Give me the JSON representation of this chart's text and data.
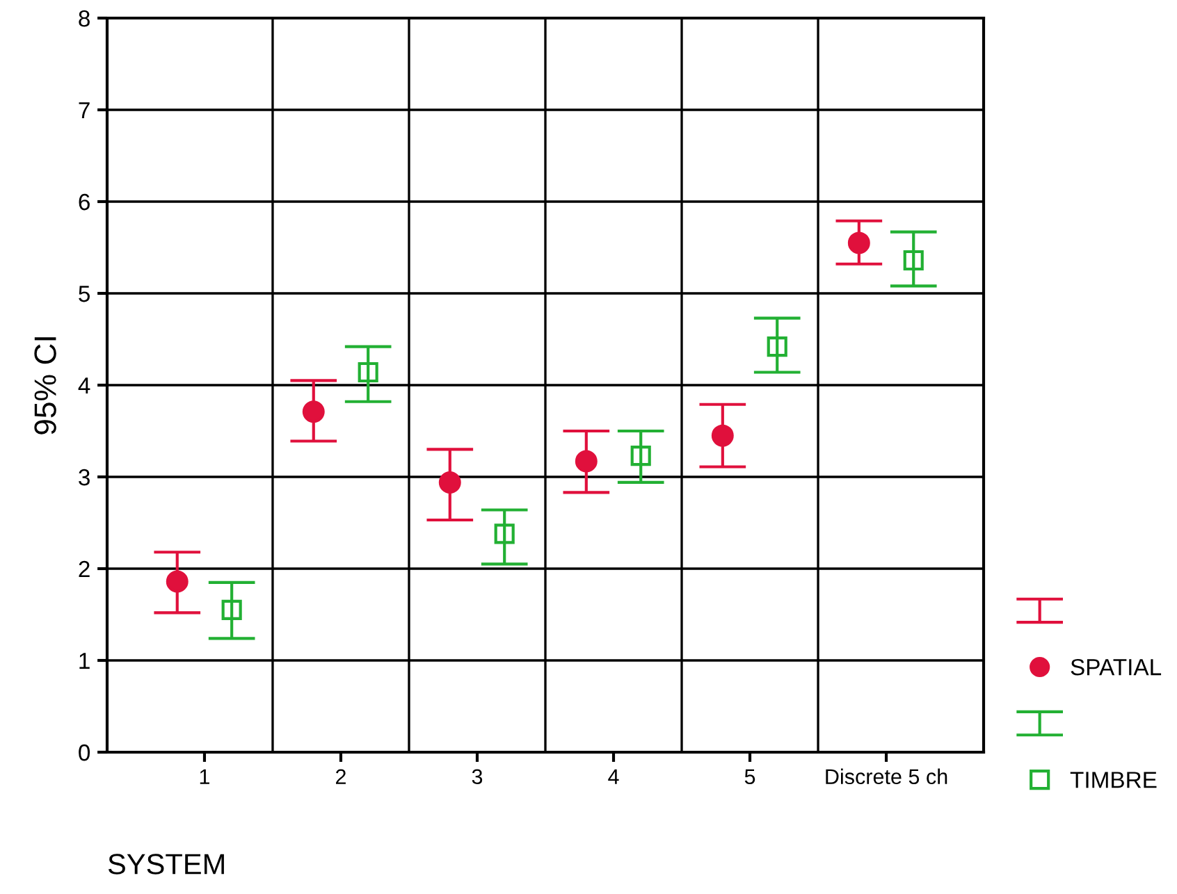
{
  "chart_data": {
    "type": "scatter",
    "xlabel": "SYSTEM",
    "ylabel": "95% CI",
    "categories": [
      "1",
      "2",
      "3",
      "4",
      "5",
      "Discrete 5 ch"
    ],
    "ylim": [
      0,
      8
    ],
    "yticks": [
      0,
      1,
      2,
      3,
      4,
      5,
      6,
      7,
      8
    ],
    "grid": true,
    "legend": "right",
    "series": [
      {
        "name": "SPATIAL",
        "color": "#e0103c",
        "marker": "circle",
        "values": [
          1.86,
          3.71,
          2.94,
          3.17,
          3.45,
          5.55
        ],
        "errors": [
          [
            1.52,
            2.18
          ],
          [
            3.39,
            4.05
          ],
          [
            2.53,
            3.3
          ],
          [
            2.83,
            3.5
          ],
          [
            3.11,
            3.79
          ],
          [
            5.32,
            5.79
          ]
        ]
      },
      {
        "name": "TIMBRE",
        "color": "#22b033",
        "marker": "square",
        "values": [
          1.55,
          4.14,
          2.38,
          3.23,
          4.42,
          5.36
        ],
        "errors": [
          [
            1.24,
            1.85
          ],
          [
            3.82,
            4.42
          ],
          [
            2.05,
            2.64
          ],
          [
            2.94,
            3.5
          ],
          [
            4.14,
            4.73
          ],
          [
            5.08,
            5.67
          ]
        ]
      }
    ]
  }
}
